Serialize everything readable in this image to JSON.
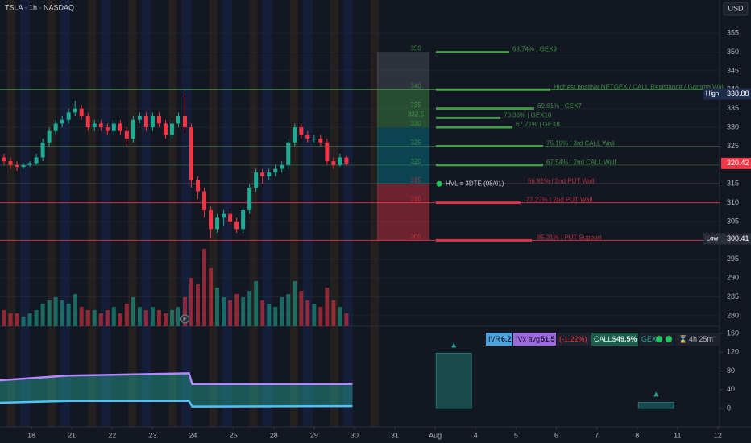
{
  "header": {
    "symbol": "TSLA · 1h · NASDAQ",
    "currency": "USD"
  },
  "chart_data": {
    "type": "candlestick",
    "up_color": "#22ab94",
    "down_color": "#f23645",
    "xlim": [
      -0.78,
      17.82
    ],
    "xticks": [
      {
        "value": 0,
        "label": "18"
      },
      {
        "value": 1,
        "label": "21"
      },
      {
        "value": 2,
        "label": "22"
      },
      {
        "value": 3,
        "label": "23"
      },
      {
        "value": 4,
        "label": "24"
      },
      {
        "value": 5,
        "label": "25"
      },
      {
        "value": 6,
        "label": "28"
      },
      {
        "value": 7,
        "label": "29"
      },
      {
        "value": 8,
        "label": "30"
      },
      {
        "value": 9,
        "label": "31"
      },
      {
        "value": 10,
        "label": "Aug"
      },
      {
        "value": 11,
        "label": "4"
      },
      {
        "value": 12,
        "label": "5"
      },
      {
        "value": 13,
        "label": "6"
      },
      {
        "value": 14,
        "label": "7"
      },
      {
        "value": 15,
        "label": "8"
      },
      {
        "value": 16,
        "label": "11"
      },
      {
        "value": 17,
        "label": "12"
      }
    ],
    "ylim": [
      277.2,
      363.8
    ],
    "yticks": [
      280,
      285,
      290,
      295,
      300,
      305,
      310,
      315,
      320,
      325,
      330,
      335,
      340,
      345,
      350,
      355
    ],
    "x": [
      -0.68,
      -0.52,
      -0.36,
      -0.2,
      -0.04,
      0.12,
      0.28,
      0.44,
      0.6,
      0.76,
      0.92,
      1.08,
      1.24,
      1.4,
      1.56,
      1.72,
      1.88,
      2.04,
      2.2,
      2.36,
      2.52,
      2.68,
      2.84,
      3.0,
      3.16,
      3.32,
      3.48,
      3.64,
      3.8,
      3.96,
      4.12,
      4.28,
      4.44,
      4.6,
      4.76,
      4.92,
      5.08,
      5.24,
      5.4,
      5.56,
      5.72,
      5.88,
      6.04,
      6.2,
      6.36,
      6.52,
      6.68,
      6.84,
      7.0,
      7.16,
      7.32,
      7.48,
      7.64,
      7.8
    ],
    "open": [
      322,
      321,
      320,
      319.5,
      320,
      320.5,
      322,
      326,
      329,
      331,
      332,
      334,
      335,
      333,
      330,
      331,
      330,
      329,
      331,
      329,
      327,
      332,
      333,
      330,
      333,
      331,
      328,
      331,
      333,
      330,
      316,
      313,
      308,
      303,
      306,
      307,
      305,
      303,
      308,
      314,
      318,
      317,
      318,
      319,
      320,
      326,
      330,
      328,
      327,
      327,
      326,
      321,
      320,
      322
    ],
    "high": [
      323,
      322,
      321,
      320.5,
      321,
      323,
      327,
      330,
      332,
      333,
      335,
      337,
      336,
      334,
      332,
      332,
      331,
      332,
      332,
      330,
      333,
      334,
      334,
      334,
      334,
      332,
      332,
      334,
      339,
      331,
      317,
      314,
      309,
      307,
      308,
      308,
      306,
      309,
      315,
      319,
      319,
      319,
      320,
      321,
      327,
      331,
      331,
      329,
      328,
      328,
      327,
      322,
      323,
      322.5
    ],
    "low": [
      320,
      319,
      318.5,
      319,
      319.5,
      320,
      321,
      325,
      328,
      330,
      331,
      333,
      332,
      329,
      329,
      329,
      328,
      328,
      328,
      325,
      326,
      331,
      329,
      329,
      330,
      327,
      327,
      330,
      329,
      314,
      311,
      306,
      300.5,
      302,
      304,
      304,
      302,
      302,
      307,
      313,
      315,
      316,
      317,
      318,
      319,
      325,
      327,
      326,
      326,
      325,
      320,
      319,
      319.5,
      319.8
    ],
    "close": [
      321,
      320,
      319.5,
      320,
      320.5,
      322,
      326,
      329,
      331,
      332,
      334,
      335,
      333,
      330,
      331,
      330,
      329,
      331,
      329,
      327,
      332,
      333,
      330,
      333,
      331,
      328,
      331,
      333,
      330,
      316,
      313,
      308,
      303,
      306,
      307,
      305,
      303,
      308,
      314,
      318,
      317,
      318,
      319,
      320,
      326,
      330,
      328,
      327,
      327,
      326,
      321,
      320,
      322,
      320.42
    ],
    "volume": [
      5,
      4,
      4,
      3,
      4,
      5,
      7,
      8,
      9,
      8,
      7,
      10,
      6,
      5,
      5,
      4,
      5,
      6,
      4,
      7,
      9,
      6,
      5,
      6,
      5,
      4,
      5,
      6,
      9,
      15,
      13,
      24,
      18,
      12,
      9,
      8,
      10,
      9,
      11,
      14,
      8,
      7,
      6,
      9,
      10,
      14,
      11,
      8,
      7,
      6,
      12,
      8,
      6,
      4
    ],
    "earnings_marker": "E",
    "price_badges": [
      {
        "label": "High",
        "value": 338.88,
        "color": "#1f2d4d"
      },
      {
        "value": 320.42,
        "color": "#f23645"
      },
      {
        "label": "Low",
        "value": 300.41,
        "color": "#2a2e39"
      }
    ],
    "zones": [
      {
        "from": 350,
        "to": 340,
        "color": "rgba(120,123,134,0.28)"
      },
      {
        "from": 340,
        "to": 330,
        "color": "rgba(76,175,80,0.35)"
      },
      {
        "from": 330,
        "to": 315,
        "color": "rgba(0,150,170,0.35)"
      },
      {
        "from": 315,
        "to": 300,
        "color": "rgba(242,54,69,0.4)"
      }
    ],
    "levels": [
      {
        "price": 350,
        "text": "68.74% | GEX9",
        "color": "#4caf50",
        "across": false
      },
      {
        "price": 340,
        "text": "Highest positive NETGEX / CALL Resistance / Gamma Wall",
        "color": "#4caf50",
        "across": true
      },
      {
        "price": 335,
        "text": "69.61% | GEX7",
        "color": "#4caf50",
        "across": false
      },
      {
        "price": 332.5,
        "text": "70.36% | GEX10",
        "color": "#4caf50",
        "across": false
      },
      {
        "price": 330,
        "text": "67.71% | GEX8",
        "color": "#4caf50",
        "across": false
      },
      {
        "price": 325,
        "text": "75.19% | 3rd CALL Wall",
        "color": "#4caf50",
        "across": true
      },
      {
        "price": 320,
        "text": "67.54% | 2nd CALL Wall",
        "color": "#4caf50",
        "across": true
      },
      {
        "price": 315,
        "hvl": "HVL ≡ 3DTE (08/01)",
        "text": "56.81% | 2nd PUT Wall",
        "color": "#f23645",
        "across": true
      },
      {
        "price": 310,
        "text": "-77.27% | 2nd PUT Wall",
        "color": "#f23645",
        "across": true
      },
      {
        "price": 300,
        "text": "-85.31% | PUT Support",
        "color": "#f23645",
        "across": true
      }
    ],
    "badges": {
      "ivr_label": "IVR",
      "ivr": 6.2,
      "ivx_label": "IVx avg",
      "ivx": 51.5,
      "change": "(-1.22%)",
      "calls_label": "CALL$",
      "calls": "49.5%",
      "gex": "GEX",
      "timer": "4h 25m"
    },
    "indicator": {
      "ylim": [
        -39.6,
        175.5
      ],
      "yticks": [
        0,
        40,
        80,
        120,
        160
      ],
      "x": [
        -0.78,
        0.9,
        3.9,
        3.98,
        7.95
      ],
      "series": [
        {
          "color": "#b388ff",
          "values": [
            60,
            70,
            75,
            52,
            52
          ]
        },
        {
          "color": "#4fc3f7",
          "values": [
            12,
            16,
            16,
            4,
            5
          ]
        }
      ],
      "fill": "rgba(38,166,154,0.45)",
      "bars": {
        "x": [
          10.46,
          15.47
        ],
        "values": [
          118,
          13
        ],
        "color": "rgba(38,166,154,0.35)"
      }
    }
  }
}
